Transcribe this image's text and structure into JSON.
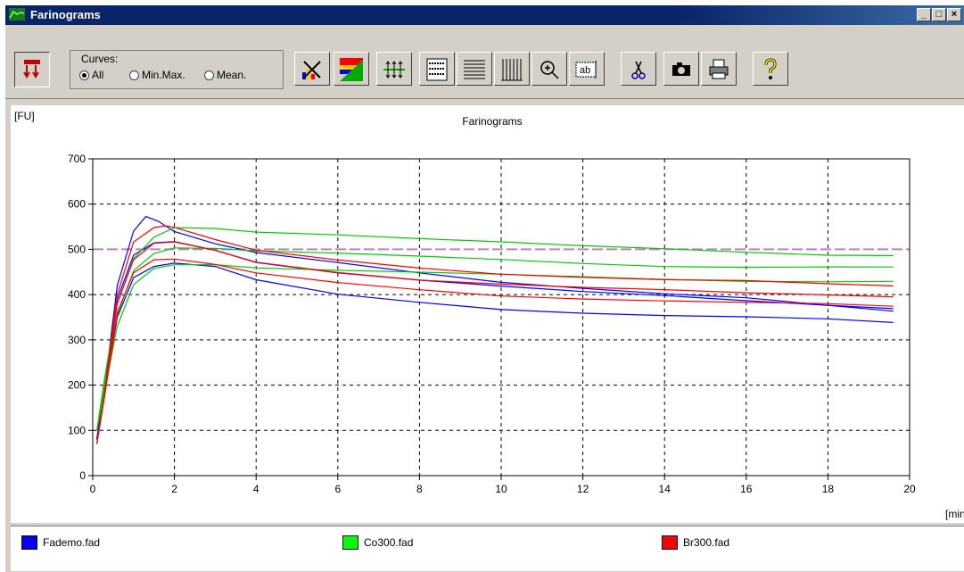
{
  "window": {
    "title": "Farinograms",
    "min_label": "_",
    "max_label": "□",
    "close_label": "×"
  },
  "toolbar": {
    "curves_label": "Curves:",
    "radio_all": "All",
    "radio_minmax": "Min.Max.",
    "radio_mean": "Mean.",
    "selected": "All",
    "btn_text_label": "ab"
  },
  "chart_data": {
    "type": "line",
    "title": "Farinograms",
    "xlabel": "[min]",
    "ylabel": "[FU]",
    "xlim": [
      0,
      20
    ],
    "ylim": [
      0,
      700
    ],
    "xticks": [
      0,
      2,
      4,
      6,
      8,
      10,
      12,
      14,
      16,
      18,
      20
    ],
    "yticks": [
      0,
      100,
      200,
      300,
      400,
      500,
      600,
      700
    ],
    "grid": true,
    "reference_line": {
      "y": 500,
      "color": "#c080c0"
    },
    "series": [
      {
        "name": "Fademo.fad",
        "color": "#0000ff",
        "x": [
          0.1,
          0.3,
          0.6,
          1.0,
          1.3,
          1.6,
          2.0,
          3.0,
          4.0,
          6.0,
          8.0,
          10.0,
          12.0,
          14.0,
          16.0,
          18.0,
          19.6
        ],
        "y": [
          80,
          200,
          420,
          540,
          575,
          565,
          540,
          510,
          490,
          470,
          450,
          430,
          415,
          400,
          390,
          375,
          365
        ]
      },
      {
        "name": "Fademo.fad",
        "color": "#0000ff",
        "x": [
          0.1,
          0.3,
          0.6,
          1.0,
          1.5,
          2.0,
          3.0,
          4.0,
          6.0,
          8.0,
          10.0,
          12.0,
          14.0,
          16.0,
          18.0,
          19.6
        ],
        "y": [
          80,
          190,
          350,
          440,
          465,
          470,
          460,
          430,
          400,
          385,
          370,
          360,
          352,
          348,
          345,
          340
        ]
      },
      {
        "name": "Fademo.fad",
        "color": "#0000ff",
        "x": [
          0.1,
          0.3,
          0.6,
          1.0,
          1.5,
          2.0,
          3.0,
          4.0,
          6.0,
          8.0,
          10.0,
          12.0,
          14.0,
          16.0,
          18.0,
          19.6
        ],
        "y": [
          80,
          200,
          390,
          490,
          515,
          515,
          495,
          470,
          450,
          435,
          420,
          405,
          395,
          385,
          378,
          372
        ]
      },
      {
        "name": "Co300.fad",
        "color": "#00cc00",
        "x": [
          0.1,
          0.3,
          0.6,
          1.0,
          1.5,
          2.0,
          3.0,
          4.0,
          6.0,
          8.0,
          10.0,
          12.0,
          14.0,
          16.0,
          18.0,
          19.6
        ],
        "y": [
          100,
          220,
          380,
          480,
          525,
          545,
          545,
          540,
          535,
          525,
          515,
          505,
          500,
          495,
          490,
          488
        ]
      },
      {
        "name": "Co300.fad",
        "color": "#00cc00",
        "x": [
          0.1,
          0.3,
          0.6,
          1.0,
          1.5,
          2.0,
          3.0,
          4.0,
          6.0,
          8.0,
          10.0,
          12.0,
          14.0,
          16.0,
          18.0,
          19.6
        ],
        "y": [
          100,
          190,
          330,
          420,
          455,
          465,
          468,
          462,
          455,
          448,
          442,
          438,
          435,
          432,
          430,
          428
        ]
      },
      {
        "name": "Co300.fad",
        "color": "#00cc00",
        "x": [
          0.1,
          0.3,
          0.6,
          1.0,
          1.5,
          2.0,
          3.0,
          4.0,
          6.0,
          8.0,
          10.0,
          12.0,
          14.0,
          16.0,
          18.0,
          19.6
        ],
        "y": [
          100,
          205,
          355,
          450,
          490,
          505,
          505,
          498,
          490,
          482,
          476,
          470,
          465,
          462,
          460,
          458
        ]
      },
      {
        "name": "Br300.fad",
        "color": "#ff0000",
        "x": [
          0.1,
          0.3,
          0.6,
          1.0,
          1.5,
          1.8,
          2.0,
          3.0,
          4.0,
          6.0,
          8.0,
          10.0,
          12.0,
          14.0,
          16.0,
          18.0,
          19.6
        ],
        "y": [
          70,
          190,
          400,
          515,
          550,
          555,
          550,
          520,
          495,
          475,
          460,
          448,
          440,
          432,
          428,
          422,
          420
        ]
      },
      {
        "name": "Br300.fad",
        "color": "#ff0000",
        "x": [
          0.1,
          0.3,
          0.6,
          1.0,
          1.5,
          2.0,
          3.0,
          4.0,
          6.0,
          8.0,
          10.0,
          12.0,
          14.0,
          16.0,
          18.0,
          19.6
        ],
        "y": [
          70,
          180,
          360,
          450,
          480,
          480,
          465,
          445,
          425,
          412,
          400,
          392,
          385,
          380,
          378,
          375
        ]
      },
      {
        "name": "Br300.fad",
        "color": "#ff0000",
        "x": [
          0.1,
          0.3,
          0.6,
          1.0,
          1.5,
          2.0,
          3.0,
          4.0,
          6.0,
          8.0,
          10.0,
          12.0,
          14.0,
          16.0,
          18.0,
          19.6
        ],
        "y": [
          70,
          185,
          380,
          480,
          515,
          515,
          495,
          470,
          450,
          435,
          425,
          415,
          408,
          402,
          400,
          398
        ]
      }
    ]
  },
  "legend": [
    {
      "label": "Fademo.fad",
      "color": "#0000ff"
    },
    {
      "label": "Co300.fad",
      "color": "#00ff00"
    },
    {
      "label": "Br300.fad",
      "color": "#ff0000"
    }
  ]
}
